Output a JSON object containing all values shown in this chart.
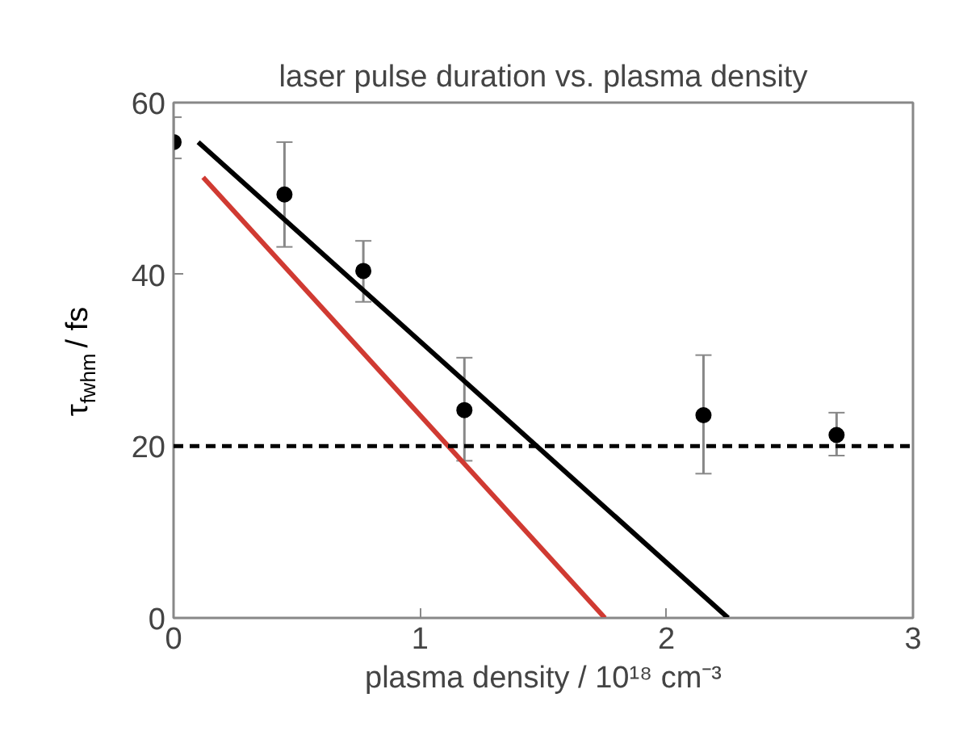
{
  "chart_data": {
    "type": "scatter",
    "title": "laser pulse duration vs. plasma density",
    "xlabel": "plasma density / 10¹⁸ cm⁻³",
    "ylabel": "τ$_{fwhm}$ / fs",
    "xlim": [
      0,
      3
    ],
    "ylim": [
      0,
      60
    ],
    "xticks": [
      0,
      1,
      2,
      3
    ],
    "yticks": [
      0,
      20,
      40,
      60
    ],
    "grid": false,
    "marker": "circle",
    "series": [
      {
        "color": "#000000",
        "x": [
          0.0,
          0.45,
          0.77,
          1.18,
          2.15,
          2.69
        ],
        "values": [
          55.4,
          49.3,
          40.4,
          24.2,
          23.6,
          21.3
        ],
        "errors": [
          [
            53.5,
            58.3
          ],
          [
            43.2,
            55.4
          ],
          [
            36.8,
            43.9
          ],
          [
            18.3,
            30.3
          ],
          [
            16.8,
            30.6
          ],
          [
            18.9,
            23.9
          ]
        ]
      },
      {
        "type": "line",
        "marker": "none",
        "color": "#000000",
        "x": [
          0.1,
          2.25
        ],
        "values": [
          55.4,
          0
        ]
      },
      {
        "type": "line",
        "marker": "none",
        "color": "#d03a32",
        "x": [
          0.12,
          1.75
        ],
        "values": [
          51.3,
          0
        ]
      }
    ],
    "ref_lines": [
      {
        "axis": "y",
        "value": 20,
        "label": null,
        "color": "#000000",
        "line_style": "dashed"
      }
    ]
  }
}
